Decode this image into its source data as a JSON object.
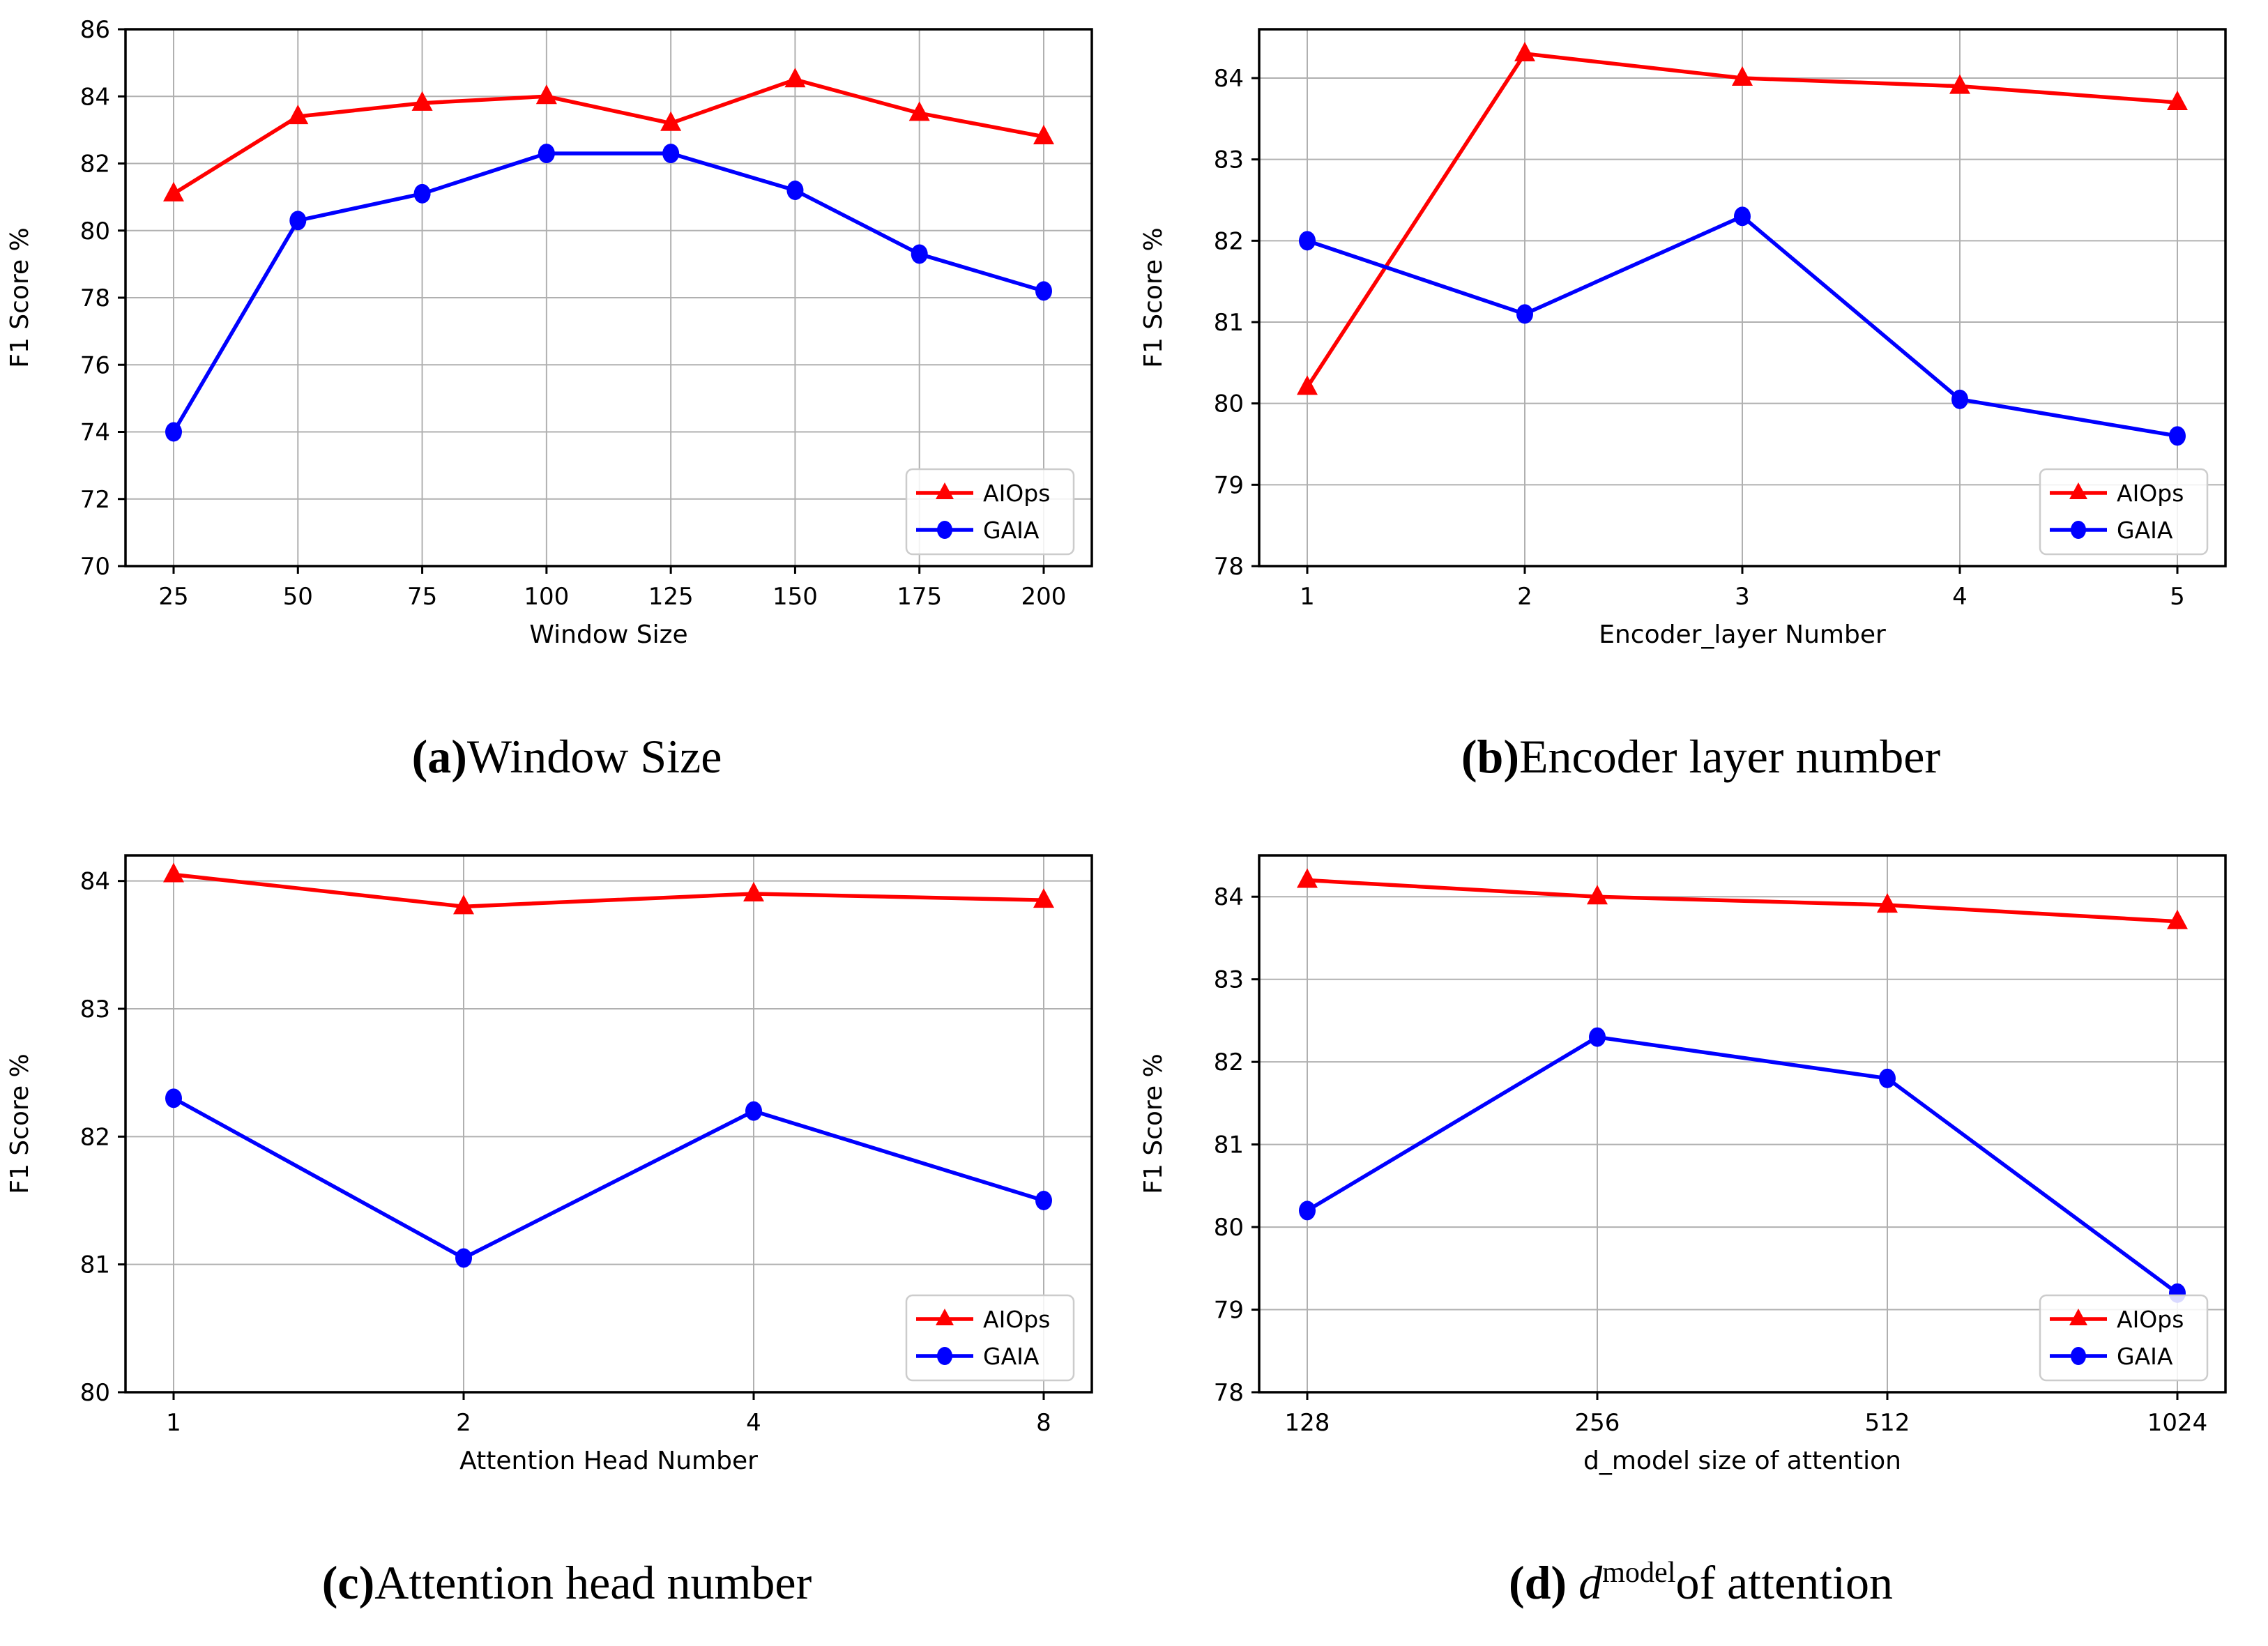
{
  "figure": {
    "captions": [
      {
        "label": "(a)",
        "text": " Window Size"
      },
      {
        "label": "(b)",
        "text": " Encoder layer number"
      },
      {
        "label": "(c)",
        "text": " Attention head number"
      },
      {
        "label": "(d)",
        "dvar": "d",
        "dsub": "model",
        "text": " of attention"
      }
    ]
  },
  "colors": {
    "aiops": "#ff0000",
    "gaia": "#0000ff",
    "grid": "#b0b0b0",
    "axis": "#000000",
    "legend_border": "#cccccc",
    "background": "#ffffff"
  },
  "chart_data": [
    {
      "type": "line",
      "panel": "a",
      "xlabel": "Window Size",
      "ylabel": "F1 Score %",
      "x_tick_labels": [
        "25",
        "50",
        "75",
        "100",
        "125",
        "150",
        "175",
        "200"
      ],
      "y_ticks": [
        70,
        72,
        74,
        76,
        78,
        80,
        82,
        84,
        86
      ],
      "ylim": [
        70,
        86
      ],
      "grid": true,
      "legend_position": "lower right",
      "series": [
        {
          "name": "AIOps",
          "color": "#ff0000",
          "marker": "triangle",
          "values": [
            81.1,
            83.4,
            83.8,
            84.0,
            83.2,
            84.5,
            83.5,
            82.8
          ]
        },
        {
          "name": "GAIA",
          "color": "#0000ff",
          "marker": "circle",
          "values": [
            74.0,
            80.3,
            81.1,
            82.3,
            82.3,
            81.2,
            79.3,
            78.2
          ]
        }
      ]
    },
    {
      "type": "line",
      "panel": "b",
      "xlabel": "Encoder_layer Number",
      "ylabel": "F1 Score %",
      "x_tick_labels": [
        "1",
        "2",
        "3",
        "4",
        "5"
      ],
      "y_ticks": [
        78,
        79,
        80,
        81,
        82,
        83,
        84
      ],
      "ylim": [
        78,
        84.6
      ],
      "grid": true,
      "legend_position": "lower right",
      "series": [
        {
          "name": "AIOps",
          "color": "#ff0000",
          "marker": "triangle",
          "values": [
            80.2,
            84.3,
            84.0,
            83.9,
            83.7
          ]
        },
        {
          "name": "GAIA",
          "color": "#0000ff",
          "marker": "circle",
          "values": [
            82.0,
            81.1,
            82.3,
            80.05,
            79.6
          ]
        }
      ]
    },
    {
      "type": "line",
      "panel": "c",
      "xlabel": "Attention Head Number",
      "ylabel": "F1 Score %",
      "x_tick_labels": [
        "1",
        "2",
        "4",
        "8"
      ],
      "y_ticks": [
        80,
        81,
        82,
        83,
        84
      ],
      "ylim": [
        80,
        84.2
      ],
      "grid": true,
      "legend_position": "lower right",
      "series": [
        {
          "name": "AIOps",
          "color": "#ff0000",
          "marker": "triangle",
          "values": [
            84.05,
            83.8,
            83.9,
            83.85
          ]
        },
        {
          "name": "GAIA",
          "color": "#0000ff",
          "marker": "circle",
          "values": [
            82.3,
            81.05,
            82.2,
            81.5
          ]
        }
      ]
    },
    {
      "type": "line",
      "panel": "d",
      "xlabel": "d_model size of attention",
      "ylabel": "F1 Score %",
      "x_tick_labels": [
        "128",
        "256",
        "512",
        "1024"
      ],
      "y_ticks": [
        78,
        79,
        80,
        81,
        82,
        83,
        84
      ],
      "ylim": [
        78,
        84.5
      ],
      "grid": true,
      "legend_position": "lower right",
      "series": [
        {
          "name": "AIOps",
          "color": "#ff0000",
          "marker": "triangle",
          "values": [
            84.2,
            84.0,
            83.9,
            83.7
          ]
        },
        {
          "name": "GAIA",
          "color": "#0000ff",
          "marker": "circle",
          "values": [
            80.2,
            82.3,
            81.8,
            79.2
          ]
        }
      ]
    }
  ]
}
